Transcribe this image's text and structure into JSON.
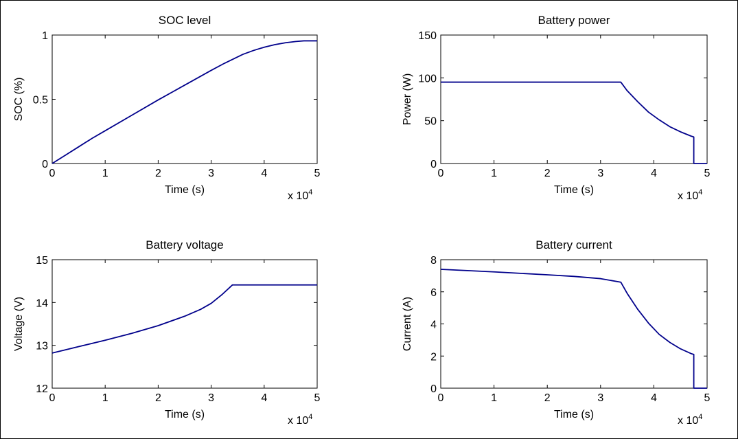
{
  "chart_data": [
    {
      "type": "line",
      "title": "SOC level",
      "xlabel": "Time (s)",
      "ylabel": "SOC (%)",
      "xlim": [
        0,
        5
      ],
      "ylim": [
        0,
        1
      ],
      "x_multiplier": "x 10",
      "x_multiplier_exp": "4",
      "xticks": [
        "0",
        "1",
        "2",
        "3",
        "4",
        "5"
      ],
      "yticks": [
        "0",
        "0.5",
        "1"
      ],
      "x": [
        0,
        0.25,
        0.5,
        0.75,
        1,
        1.5,
        2,
        2.5,
        3,
        3.25,
        3.4,
        3.6,
        3.8,
        4,
        4.2,
        4.4,
        4.6,
        4.75,
        5
      ],
      "y": [
        0,
        0.065,
        0.13,
        0.195,
        0.255,
        0.375,
        0.495,
        0.61,
        0.725,
        0.78,
        0.81,
        0.85,
        0.88,
        0.905,
        0.925,
        0.94,
        0.95,
        0.955,
        0.955
      ]
    },
    {
      "type": "line",
      "title": "Battery power",
      "xlabel": "Time (s)",
      "ylabel": "Power (W)",
      "xlim": [
        0,
        5
      ],
      "ylim": [
        0,
        150
      ],
      "x_multiplier": "x 10",
      "x_multiplier_exp": "4",
      "xticks": [
        "0",
        "1",
        "2",
        "3",
        "4",
        "5"
      ],
      "yticks": [
        "0",
        "50",
        "100",
        "150"
      ],
      "x": [
        0,
        3.38,
        3.5,
        3.7,
        3.9,
        4.1,
        4.3,
        4.5,
        4.7,
        4.75,
        4.75,
        5
      ],
      "y": [
        95,
        95,
        85,
        72,
        60,
        51,
        43,
        37,
        32,
        31,
        0,
        0
      ]
    },
    {
      "type": "line",
      "title": "Battery voltage",
      "xlabel": "Time (s)",
      "ylabel": "Voltage (V)",
      "xlim": [
        0,
        5
      ],
      "ylim": [
        12,
        15
      ],
      "x_multiplier": "x 10",
      "x_multiplier_exp": "4",
      "xticks": [
        "0",
        "1",
        "2",
        "3",
        "4",
        "5"
      ],
      "yticks": [
        "12",
        "13",
        "14",
        "15"
      ],
      "x": [
        0,
        0.5,
        1,
        1.5,
        2,
        2.5,
        2.8,
        3,
        3.2,
        3.4,
        5
      ],
      "y": [
        12.82,
        12.97,
        13.12,
        13.28,
        13.46,
        13.68,
        13.84,
        13.98,
        14.18,
        14.41,
        14.41
      ]
    },
    {
      "type": "line",
      "title": "Battery current",
      "xlabel": "Time (s)",
      "ylabel": "Current (A)",
      "xlim": [
        0,
        5
      ],
      "ylim": [
        0,
        8
      ],
      "x_multiplier": "x 10",
      "x_multiplier_exp": "4",
      "xticks": [
        "0",
        "1",
        "2",
        "3",
        "4",
        "5"
      ],
      "yticks": [
        "0",
        "2",
        "4",
        "6",
        "8"
      ],
      "x": [
        0,
        0.5,
        1,
        1.5,
        2,
        2.5,
        3,
        3.38,
        3.5,
        3.7,
        3.9,
        4.1,
        4.3,
        4.5,
        4.7,
        4.75,
        4.75,
        5
      ],
      "y": [
        7.4,
        7.32,
        7.24,
        7.15,
        7.06,
        6.96,
        6.82,
        6.6,
        5.9,
        4.9,
        4.05,
        3.35,
        2.85,
        2.45,
        2.15,
        2.1,
        0,
        0
      ]
    }
  ],
  "colors": {
    "line": "#00008B",
    "axes": "#000000",
    "background": "#ffffff"
  }
}
